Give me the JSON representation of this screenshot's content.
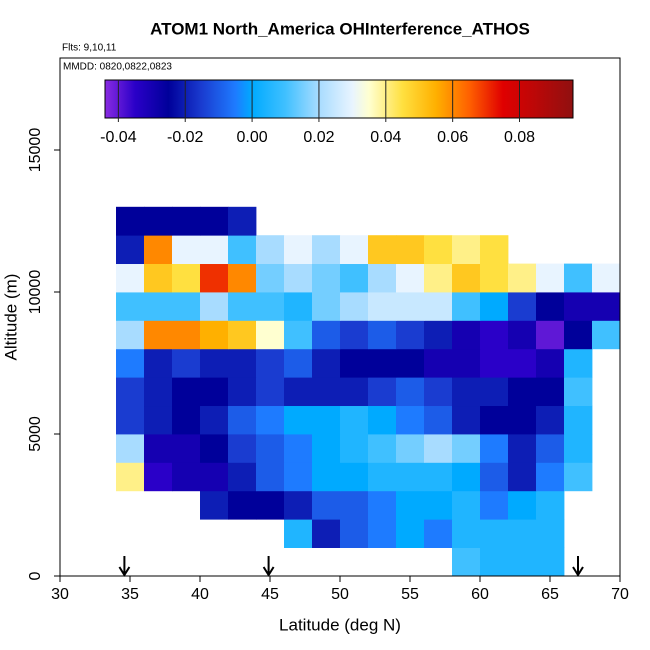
{
  "chart_data": {
    "type": "heatmap",
    "title": "ATOM1 North_America OHInterference_ATHOS",
    "subtitle": "Flts: 9,10,11",
    "annotation": "MMDD: 0820,0822,0823",
    "x_label": "Latitude (deg N)",
    "y_label": "Altitude (m)",
    "xlim": [
      30,
      70
    ],
    "xticks": [
      30,
      35,
      40,
      45,
      50,
      55,
      60,
      65,
      70
    ],
    "ylim": [
      0,
      18240
    ],
    "yticks": [
      0,
      5000,
      10000,
      15000
    ],
    "xbins": [
      34,
      36,
      38,
      40,
      42,
      44,
      46,
      48,
      50,
      52,
      54,
      56,
      58,
      60,
      62,
      64,
      66,
      68,
      70
    ],
    "ybins": [
      0,
      1000,
      2000,
      3000,
      4000,
      5000,
      6000,
      7000,
      8000,
      9000,
      10000,
      11000,
      12000,
      13000
    ],
    "z": [
      [
        null,
        null,
        null,
        null,
        null,
        null,
        null,
        null,
        null,
        null,
        null,
        null,
        0.01,
        0.005,
        0.005,
        0.005,
        null,
        null
      ],
      [
        null,
        null,
        null,
        null,
        null,
        null,
        0.005,
        -0.02,
        -0.01,
        -0.005,
        0,
        -0.005,
        0.005,
        0.005,
        0.005,
        0.005,
        null,
        null
      ],
      [
        null,
        null,
        null,
        -0.02,
        -0.025,
        -0.025,
        -0.02,
        -0.01,
        -0.01,
        -0.005,
        0,
        0,
        0.005,
        -0.005,
        0,
        0.005,
        null,
        null
      ],
      [
        0.04,
        -0.035,
        -0.03,
        -0.03,
        -0.02,
        -0.01,
        -0.005,
        0,
        0,
        0.005,
        0.005,
        0.005,
        0,
        -0.01,
        -0.02,
        -0.005,
        0.01,
        null
      ],
      [
        0.02,
        -0.03,
        -0.03,
        -0.025,
        -0.015,
        -0.01,
        -0.005,
        0,
        0.005,
        0.01,
        0.015,
        0.02,
        0.015,
        -0.005,
        -0.02,
        -0.01,
        0.005,
        null
      ],
      [
        -0.015,
        -0.02,
        -0.025,
        -0.02,
        -0.01,
        -0.005,
        0,
        0,
        0.005,
        0,
        -0.005,
        -0.01,
        -0.02,
        -0.025,
        -0.025,
        -0.02,
        0.005,
        null
      ],
      [
        -0.015,
        -0.02,
        -0.025,
        -0.025,
        -0.02,
        -0.015,
        -0.02,
        -0.02,
        -0.02,
        -0.015,
        -0.01,
        -0.015,
        -0.02,
        -0.02,
        -0.025,
        -0.025,
        0.01,
        null
      ],
      [
        -0.005,
        -0.02,
        -0.015,
        -0.02,
        -0.02,
        -0.015,
        -0.01,
        -0.02,
        -0.025,
        -0.025,
        -0.025,
        -0.03,
        -0.03,
        -0.035,
        -0.035,
        -0.03,
        0.005,
        null
      ],
      [
        0.02,
        0.06,
        0.06,
        0.055,
        0.05,
        0.035,
        0.01,
        -0.01,
        -0.015,
        -0.01,
        -0.015,
        -0.02,
        -0.03,
        -0.035,
        -0.03,
        -0.04,
        -0.025,
        0.01
      ],
      [
        0.01,
        0.01,
        0.01,
        0.02,
        0.01,
        0.01,
        0.005,
        0.015,
        0.02,
        0.025,
        0.025,
        0.025,
        0.01,
        0,
        -0.015,
        -0.025,
        -0.03,
        -0.03
      ],
      [
        0.03,
        0.05,
        0.045,
        0.07,
        0.06,
        0.015,
        0.02,
        0.015,
        0.01,
        0.02,
        0.03,
        0.04,
        0.05,
        0.045,
        0.04,
        0.03,
        0.01,
        0.03
      ],
      [
        -0.02,
        0.06,
        0.03,
        0.03,
        0.01,
        0.02,
        0.03,
        0.02,
        0.03,
        0.05,
        0.05,
        0.045,
        0.04,
        0.045,
        null,
        null,
        null,
        null
      ],
      [
        -0.025,
        -0.025,
        -0.025,
        -0.025,
        -0.02,
        null,
        null,
        null,
        null,
        null,
        null,
        null,
        null,
        null,
        null,
        null,
        null,
        null
      ]
    ],
    "colorscale": [
      [
        -0.044,
        "#8a2be2"
      ],
      [
        -0.035,
        "#2a00c8"
      ],
      [
        -0.025,
        "#00009a"
      ],
      [
        -0.015,
        "#1a3cd0"
      ],
      [
        -0.005,
        "#1e7bff"
      ],
      [
        0,
        "#00aaff"
      ],
      [
        0.01,
        "#40c0ff"
      ],
      [
        0.02,
        "#a8dcff"
      ],
      [
        0.03,
        "#e8f4ff"
      ],
      [
        0.035,
        "#ffffd0"
      ],
      [
        0.045,
        "#ffe040"
      ],
      [
        0.055,
        "#ffb000"
      ],
      [
        0.065,
        "#ff6000"
      ],
      [
        0.075,
        "#e00000"
      ],
      [
        0.096,
        "#901010"
      ]
    ],
    "colorbar": {
      "lim": [
        -0.044,
        0.096
      ],
      "ticks": [
        -0.04,
        -0.02,
        {
          "value": 0,
          "label": "0.00"
        },
        0.02,
        0.04,
        0.06,
        0.08
      ]
    },
    "markers_x": [
      34.6,
      44.9,
      67
    ]
  }
}
